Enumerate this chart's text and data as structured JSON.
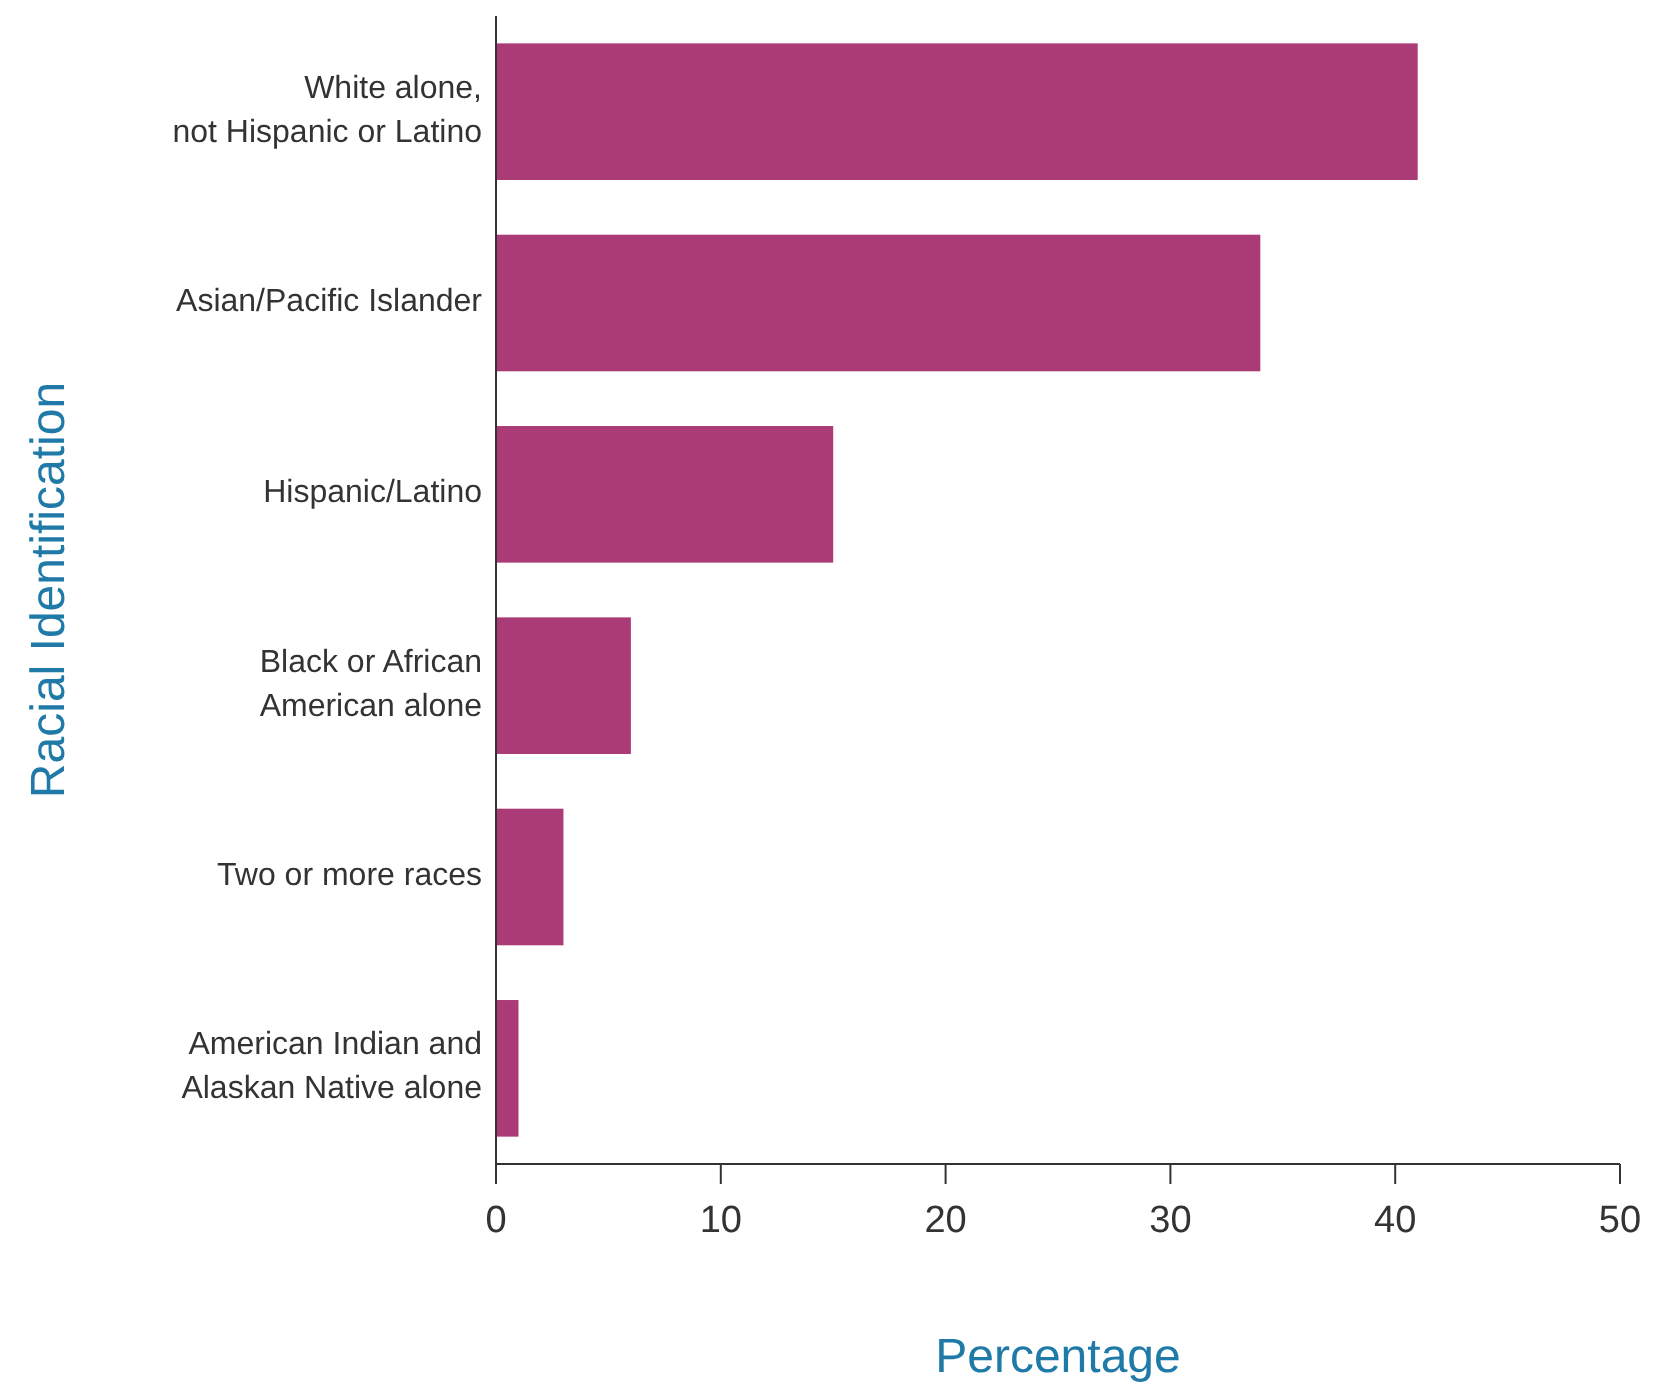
{
  "chart_data": {
    "type": "bar",
    "orientation": "horizontal",
    "xlabel": "Percentage",
    "ylabel": "Racial Identification",
    "categories": [
      "White alone,\nnot Hispanic or Latino",
      "Asian/Pacific Islander",
      "Hispanic/Latino",
      "Black or African\nAmerican alone",
      "Two or more races",
      "American Indian and\nAlaskan Native alone"
    ],
    "values": [
      41,
      34,
      15,
      6,
      3,
      1
    ],
    "color": "#ab3b76",
    "xlim": [
      0,
      50
    ],
    "xticks": [
      0,
      10,
      20,
      30,
      40,
      50
    ],
    "grid": false
  }
}
